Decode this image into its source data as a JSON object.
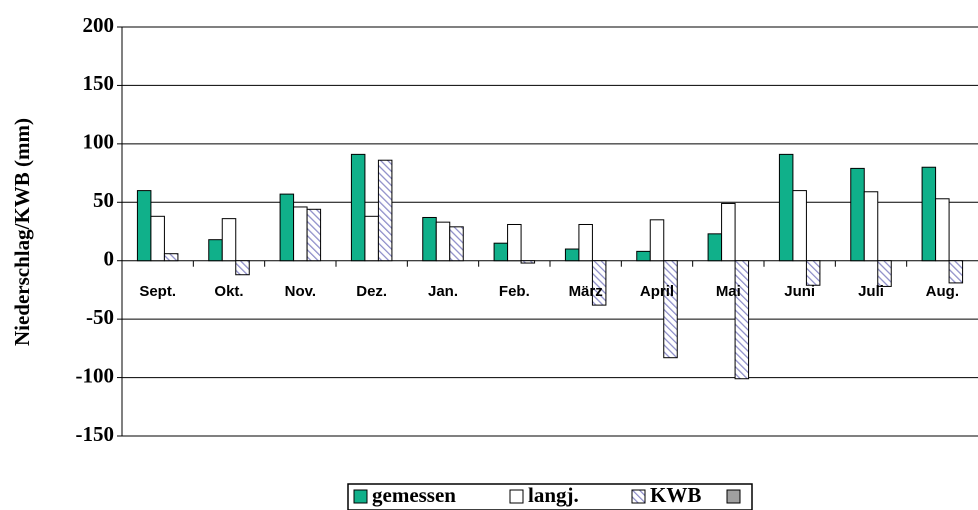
{
  "chart_data": {
    "type": "bar",
    "ylabel": "Niederschlag/KWB (mm)",
    "categories": [
      "Sept.",
      "Okt.",
      "Nov.",
      "Dez.",
      "Jan.",
      "Feb.",
      "März",
      "April",
      "Mai",
      "Juni",
      "Juli",
      "Aug."
    ],
    "series": [
      {
        "name": "gemessen",
        "color": "#10b08a",
        "values": [
          60,
          18,
          57,
          91,
          37,
          15,
          10,
          8,
          23,
          91,
          79,
          80
        ]
      },
      {
        "name": "langj.",
        "color": "#ffffff",
        "values": [
          38,
          36,
          46,
          38,
          33,
          31,
          31,
          35,
          49,
          60,
          59,
          53
        ]
      },
      {
        "name": "KWB",
        "color": "#8c8cc8",
        "hatch": true,
        "values": [
          6,
          -12,
          44,
          86,
          29,
          -2,
          -38,
          -83,
          -101,
          -21,
          -22,
          -19
        ]
      }
    ],
    "ylim": [
      -150,
      200
    ],
    "yticks": [
      -150,
      -100,
      -50,
      0,
      50,
      100,
      150,
      200
    ],
    "grid": true
  }
}
